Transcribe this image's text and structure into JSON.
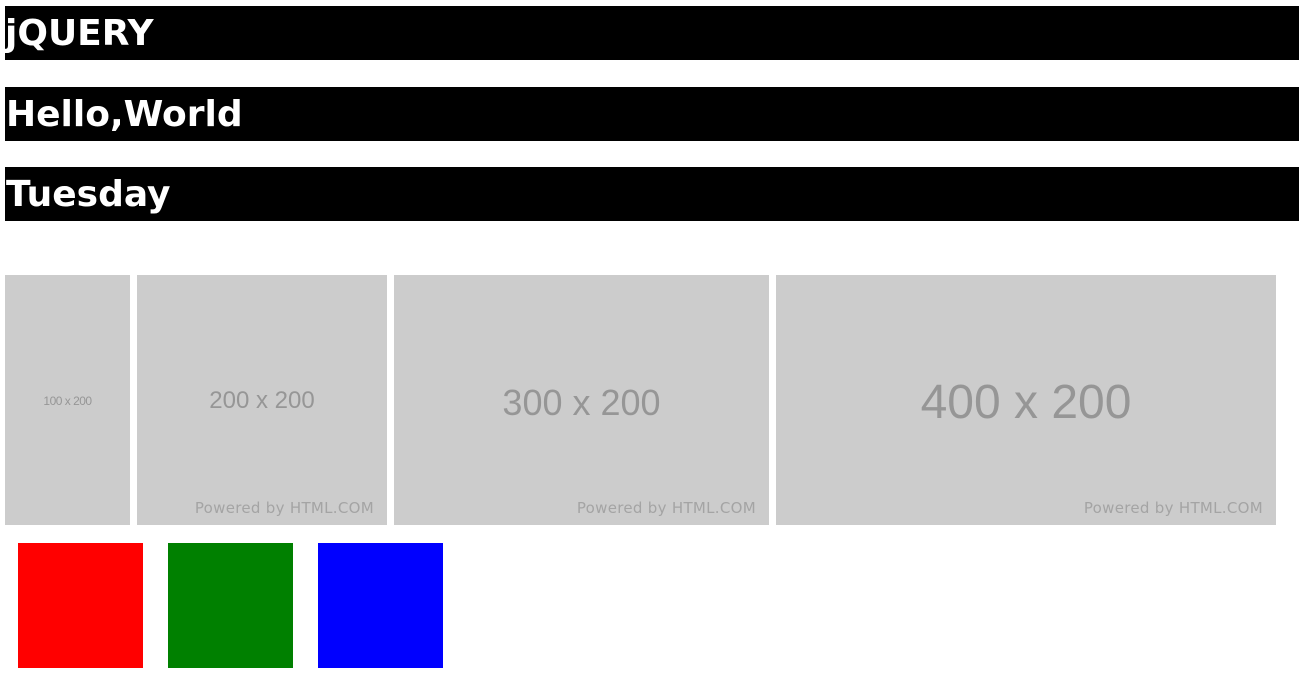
{
  "headings": [
    {
      "text": "jQUERY"
    },
    {
      "text": "Hello,World"
    },
    {
      "text": "Tuesday"
    }
  ],
  "placeholders": [
    {
      "size_label": "100 x 200",
      "powered_by": ""
    },
    {
      "size_label": "200 x 200",
      "powered_by": "Powered by HTML.COM"
    },
    {
      "size_label": "300 x 200",
      "powered_by": "Powered by HTML.COM"
    },
    {
      "size_label": "400 x 200",
      "powered_by": "Powered by HTML.COM"
    }
  ],
  "color_boxes": [
    {
      "color": "#ff0000"
    },
    {
      "color": "#008000"
    },
    {
      "color": "#0000ff"
    }
  ]
}
